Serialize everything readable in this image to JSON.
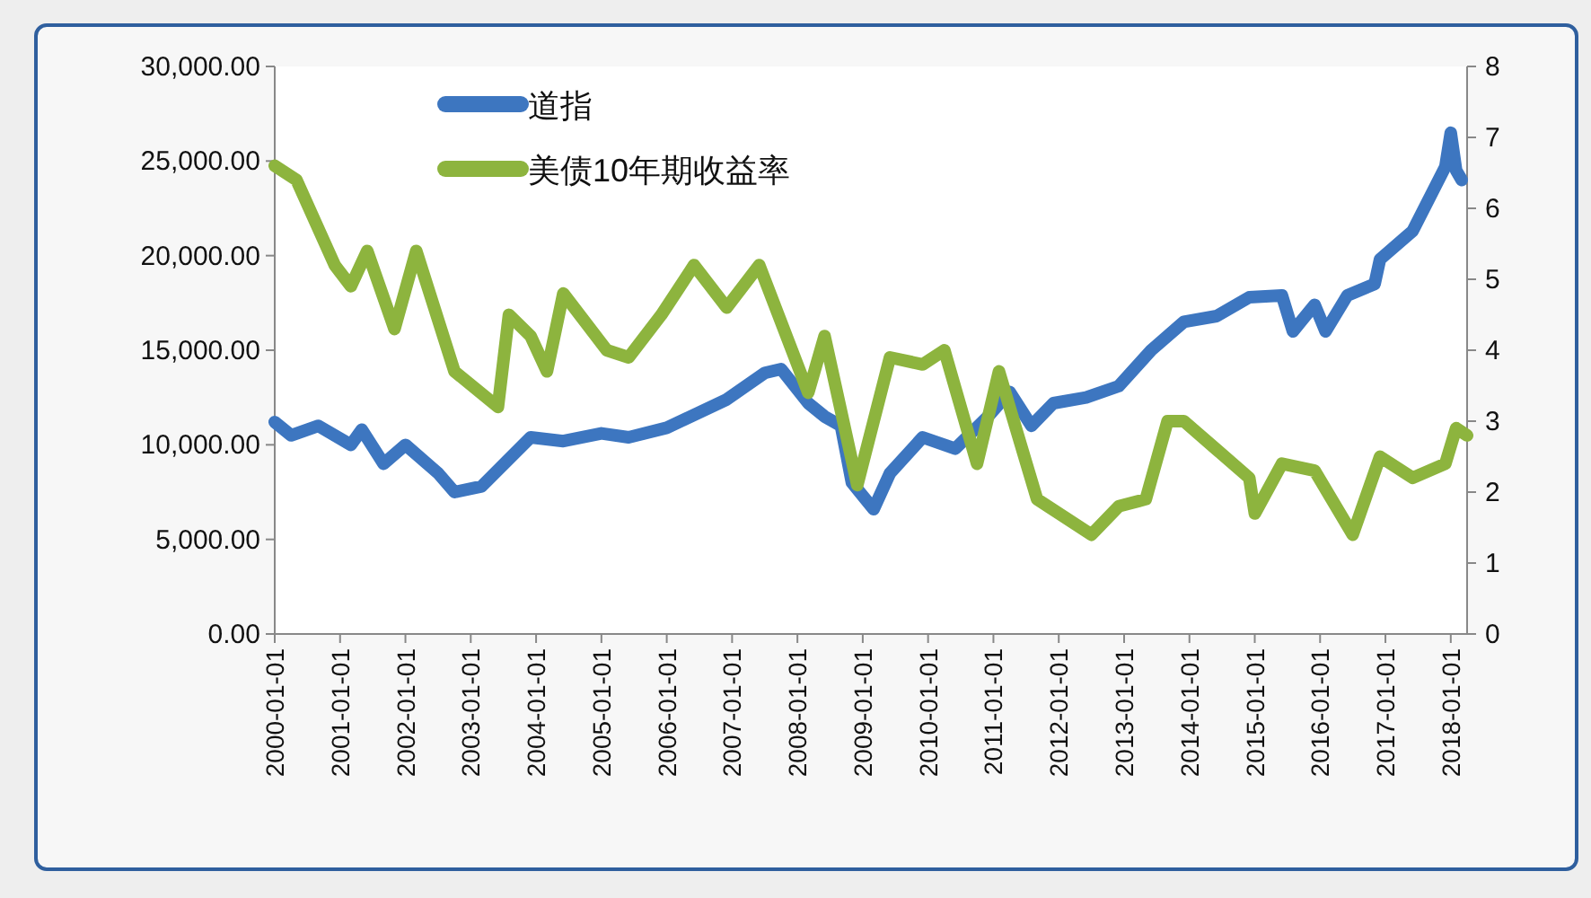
{
  "chart_data": {
    "type": "line",
    "legend": "top left",
    "xlim": [
      "2000-01-01",
      "2018-04-01"
    ],
    "xticks": [
      "2000-01-01",
      "2001-01-01",
      "2002-01-01",
      "2003-01-01",
      "2004-01-01",
      "2005-01-01",
      "2006-01-01",
      "2007-01-01",
      "2008-01-01",
      "2009-01-01",
      "2010-01-01",
      "2011-01-01",
      "2012-01-01",
      "2013-01-01",
      "2014-01-01",
      "2015-01-01",
      "2016-01-01",
      "2017-01-01",
      "2018-01-01"
    ],
    "ylim": [
      0,
      30000
    ],
    "yticks": [
      {
        "value": 0,
        "label": "0.00"
      },
      {
        "value": 5000,
        "label": "5,000.00"
      },
      {
        "value": 10000,
        "label": "10,000.00"
      },
      {
        "value": 15000,
        "label": "15,000.00"
      },
      {
        "value": 20000,
        "label": "20,000.00"
      },
      {
        "value": 25000,
        "label": "25,000.00"
      },
      {
        "value": 30000,
        "label": "30,000.00"
      }
    ],
    "y2lim": [
      0,
      8
    ],
    "y2ticks": [
      0,
      1,
      2,
      3,
      4,
      5,
      6,
      7,
      8
    ],
    "series": [
      {
        "name": "道指",
        "color": "#3d76c0",
        "x": [
          "2000-01",
          "2000-04",
          "2000-09",
          "2001-03",
          "2001-05",
          "2001-09",
          "2002-01",
          "2002-07",
          "2002-10",
          "2003-03",
          "2003-12",
          "2004-06",
          "2005-01",
          "2005-06",
          "2006-01",
          "2006-12",
          "2007-07",
          "2007-10",
          "2008-03",
          "2008-06",
          "2008-09",
          "2008-11",
          "2009-03",
          "2009-06",
          "2009-12",
          "2010-06",
          "2010-12",
          "2011-04",
          "2011-08",
          "2011-12",
          "2012-06",
          "2012-12",
          "2013-06",
          "2013-12",
          "2014-06",
          "2014-12",
          "2015-06",
          "2015-08",
          "2015-12",
          "2016-02",
          "2016-06",
          "2016-11",
          "2016-12",
          "2017-06",
          "2017-12",
          "2018-01",
          "2018-02",
          "2018-03"
        ],
        "values": [
          11200,
          10500,
          11000,
          10000,
          10800,
          9000,
          10000,
          8500,
          7500,
          7800,
          10400,
          10200,
          10600,
          10400,
          10900,
          12400,
          13800,
          14000,
          12200,
          11500,
          11000,
          8000,
          6600,
          8500,
          10400,
          9800,
          11500,
          12800,
          11000,
          12200,
          12500,
          13100,
          15000,
          16500,
          16800,
          17800,
          17900,
          16000,
          17400,
          16000,
          17900,
          18500,
          19800,
          21300,
          24700,
          26500,
          24500,
          24000
        ]
      },
      {
        "name": "美债10年期收益率",
        "color": "#8db43e",
        "axis": "y2",
        "x": [
          "2000-01",
          "2000-05",
          "2000-12",
          "2001-03",
          "2001-06",
          "2001-11",
          "2002-03",
          "2002-10",
          "2003-06",
          "2003-08",
          "2003-12",
          "2004-03",
          "2004-06",
          "2005-02",
          "2005-06",
          "2005-12",
          "2006-06",
          "2006-12",
          "2007-06",
          "2007-12",
          "2008-03",
          "2008-06",
          "2008-12",
          "2009-06",
          "2009-12",
          "2010-04",
          "2010-10",
          "2011-02",
          "2011-09",
          "2012-07",
          "2012-12",
          "2013-05",
          "2013-09",
          "2013-12",
          "2014-06",
          "2014-12",
          "2015-01",
          "2015-06",
          "2015-12",
          "2016-07",
          "2016-12",
          "2017-06",
          "2017-12",
          "2018-02",
          "2018-04"
        ],
        "values": [
          6.6,
          6.4,
          5.2,
          4.9,
          5.4,
          4.3,
          5.4,
          3.7,
          3.2,
          4.5,
          4.2,
          3.7,
          4.8,
          4.0,
          3.9,
          4.5,
          5.2,
          4.6,
          5.2,
          4.0,
          3.4,
          4.2,
          2.1,
          3.9,
          3.8,
          4.0,
          2.4,
          3.7,
          1.9,
          1.4,
          1.8,
          1.9,
          3.0,
          3.0,
          2.6,
          2.2,
          1.7,
          2.4,
          2.3,
          1.4,
          2.5,
          2.2,
          2.4,
          2.9,
          2.8
        ]
      }
    ]
  }
}
